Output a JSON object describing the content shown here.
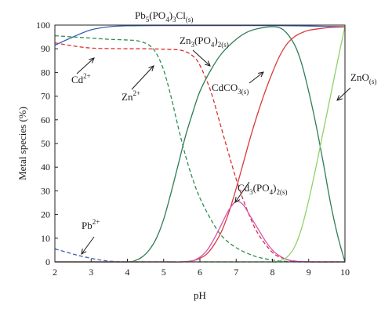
{
  "chart_data": {
    "type": "line",
    "xlabel": "pH",
    "ylabel": "Metal species (%)",
    "xlim": [
      2,
      10
    ],
    "ylim": [
      0,
      100
    ],
    "xticks": [
      2,
      3,
      4,
      5,
      6,
      7,
      8,
      9,
      10
    ],
    "yticks": [
      0,
      10,
      20,
      30,
      40,
      50,
      60,
      70,
      80,
      90,
      100
    ],
    "grid": false,
    "legend": "none",
    "series": [
      {
        "key": "pb5po43cl",
        "color": "#3a5fb5",
        "dash": "solid",
        "x": [
          2,
          2.5,
          3,
          3.5,
          4,
          5,
          6,
          7,
          8,
          9,
          10
        ],
        "y": [
          91.5,
          95,
          98,
          99.3,
          99.7,
          99.8,
          99.8,
          99.8,
          99.8,
          99.6,
          99.3
        ]
      },
      {
        "key": "pb2",
        "color": "#3a5fb5",
        "dash": "dashed",
        "x": [
          2,
          2.3,
          2.6,
          3,
          3.3,
          3.6,
          4,
          5,
          6,
          7,
          8,
          9,
          10
        ],
        "y": [
          5.5,
          4.2,
          2.9,
          1.5,
          0.7,
          0.2,
          0,
          0,
          0,
          0,
          0,
          0,
          0
        ]
      },
      {
        "key": "cd2",
        "color": "#d93030",
        "dash": "dashed",
        "x": [
          2,
          2.5,
          3,
          3.5,
          4,
          4.5,
          5,
          5.5,
          5.8,
          6,
          6.3,
          6.6,
          7,
          7.3,
          7.6,
          8,
          8.3,
          8.6,
          9,
          10
        ],
        "y": [
          92.5,
          91.2,
          90.3,
          90.1,
          90,
          90,
          89.8,
          89.3,
          87,
          83,
          72,
          56,
          35,
          22,
          12,
          4,
          1.5,
          0.4,
          0,
          0
        ]
      },
      {
        "key": "zn2",
        "color": "#2f8f4e",
        "dash": "dashed",
        "x": [
          2,
          2.5,
          3,
          3.5,
          4,
          4.3,
          4.6,
          4.8,
          5,
          5.2,
          5.4,
          5.6,
          5.8,
          6,
          6.3,
          6.6,
          7,
          7.5,
          8,
          8.5,
          9,
          10
        ],
        "y": [
          95.5,
          95,
          94.5,
          94,
          93.7,
          93.3,
          91.5,
          88,
          81,
          70,
          57,
          45,
          35,
          27,
          18,
          11,
          6,
          2.5,
          0.8,
          0.1,
          0,
          0
        ]
      },
      {
        "key": "zn3po42",
        "color": "#2e7d55",
        "dash": "solid",
        "x": [
          2,
          3,
          4,
          4.2,
          4.4,
          4.6,
          4.8,
          5,
          5.2,
          5.4,
          5.6,
          5.8,
          6,
          6.3,
          6.6,
          7,
          7.3,
          7.6,
          8,
          8.3,
          8.6,
          8.8,
          9,
          9.2,
          9.4,
          9.6,
          9.8,
          10
        ],
        "y": [
          0,
          0,
          0,
          0.5,
          2,
          5,
          10,
          18,
          29,
          41,
          53,
          63,
          72,
          81,
          88,
          94,
          97,
          98.5,
          99.3,
          98,
          92,
          84,
          72,
          58,
          42,
          25,
          11,
          0
        ]
      },
      {
        "key": "cdco3",
        "color": "#d93a3a",
        "dash": "solid",
        "x": [
          2,
          3,
          4,
          5,
          5.5,
          5.8,
          6,
          6.2,
          6.4,
          6.6,
          6.8,
          7,
          7.2,
          7.4,
          7.6,
          7.8,
          8,
          8.2,
          8.4,
          8.6,
          8.8,
          9,
          9.3,
          9.6,
          10
        ],
        "y": [
          0,
          0,
          0,
          0,
          0,
          0.5,
          1.5,
          3.5,
          7.5,
          13,
          21,
          31,
          42,
          53,
          63,
          72,
          80,
          87,
          92,
          95,
          96.7,
          97.8,
          98.5,
          99,
          99.2
        ]
      },
      {
        "key": "cd3po42",
        "color": "#d64fb3",
        "dash": "solid",
        "x": [
          2,
          4,
          5,
          5.5,
          5.8,
          6,
          6.2,
          6.4,
          6.6,
          6.8,
          7,
          7.2,
          7.4,
          7.6,
          7.8,
          8,
          8.2,
          8.4,
          8.6,
          9,
          10
        ],
        "y": [
          0,
          0,
          0,
          0,
          0.5,
          2,
          5,
          10,
          16,
          22,
          25.5,
          24,
          19,
          14,
          9,
          5,
          2.5,
          1,
          0.3,
          0,
          0
        ]
      },
      {
        "key": "zno",
        "color": "#8fd16b",
        "dash": "solid",
        "x": [
          2,
          4,
          6,
          8,
          8.2,
          8.4,
          8.6,
          8.8,
          9,
          9.2,
          9.4,
          9.6,
          9.8,
          10
        ],
        "y": [
          0,
          0,
          0,
          0,
          0.5,
          2,
          6,
          14,
          26,
          40,
          55,
          70,
          85,
          99.5
        ]
      }
    ],
    "annotations": [
      {
        "key": "pb5",
        "base": "Pb",
        "parts": [
          [
            "5",
            "sub"
          ],
          [
            "(PO",
            ""
          ],
          [
            "4",
            "sub"
          ],
          [
            ")",
            ""
          ],
          [
            "3",
            "sub"
          ],
          [
            "Cl",
            ""
          ],
          [
            "(s)",
            "sub"
          ]
        ]
      },
      {
        "key": "zn3",
        "base": "Zn",
        "parts": [
          [
            "3",
            "sub"
          ],
          [
            "(PO",
            ""
          ],
          [
            "4",
            "sub"
          ],
          [
            ")",
            ""
          ],
          [
            "2(s)",
            "sub"
          ]
        ]
      },
      {
        "key": "cd2",
        "base": "Cd",
        "parts": [
          [
            "2+",
            "sup"
          ]
        ]
      },
      {
        "key": "zn2",
        "base": "Zn",
        "parts": [
          [
            "2+",
            "sup"
          ]
        ]
      },
      {
        "key": "cdco3",
        "base": "CdCO",
        "parts": [
          [
            "3(s)",
            "sub"
          ]
        ]
      },
      {
        "key": "zno",
        "base": "ZnO",
        "parts": [
          [
            "(s)",
            "sub"
          ]
        ]
      },
      {
        "key": "cd3",
        "base": "Cd",
        "parts": [
          [
            "3",
            "sub"
          ],
          [
            "(PO",
            ""
          ],
          [
            "4",
            "sub"
          ],
          [
            ")",
            ""
          ],
          [
            "2(s)",
            "sub"
          ]
        ]
      },
      {
        "key": "pb2",
        "base": "Pb",
        "parts": [
          [
            "2+",
            "sup"
          ]
        ]
      }
    ]
  }
}
